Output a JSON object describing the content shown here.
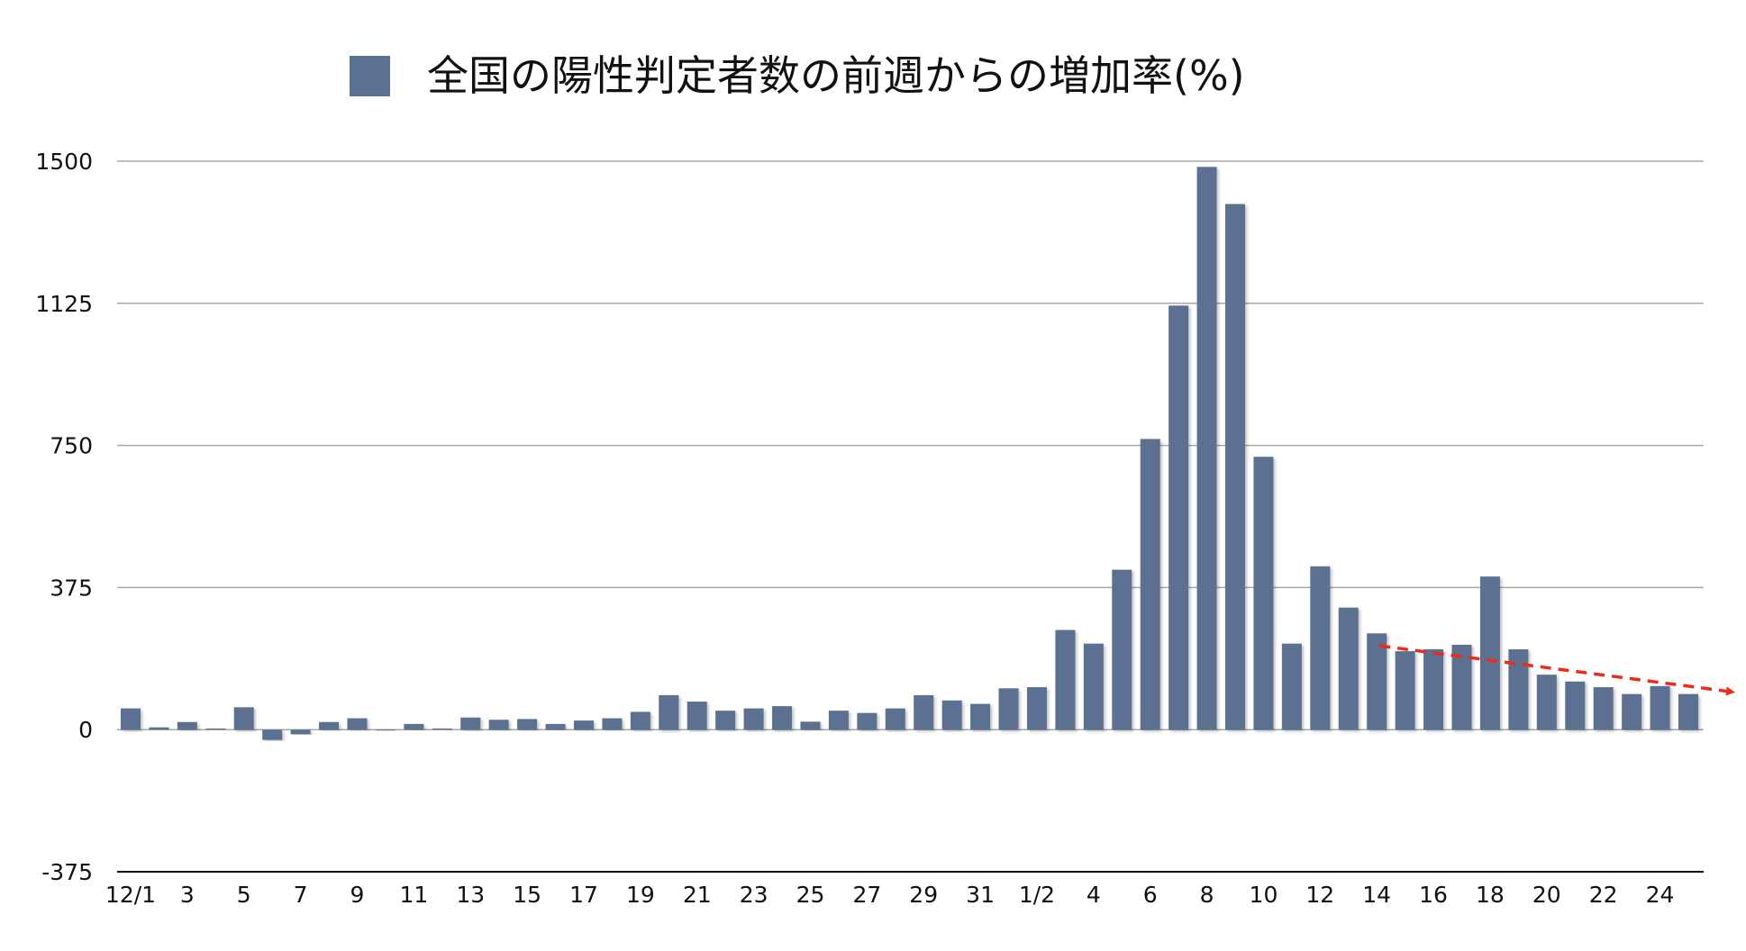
{
  "chart_data": {
    "type": "bar",
    "title": "全国の陽性判定者数の前週からの増加率(%)",
    "legend": [
      {
        "name": "全国の陽性判定者数の前週からの増加率(%)",
        "color": "#5b7191"
      }
    ],
    "legend_position": "top",
    "xlabel": "",
    "ylabel": "",
    "ylim": [
      -375,
      1500
    ],
    "yticks": [
      -375,
      0,
      375,
      750,
      1125,
      1500
    ],
    "ytick_labels": [
      "-375",
      "0",
      "375",
      "750",
      "1125",
      "1500"
    ],
    "grid": true,
    "categories": [
      "12/1",
      "12/2",
      "12/3",
      "12/4",
      "12/5",
      "12/6",
      "12/7",
      "12/8",
      "12/9",
      "12/10",
      "12/11",
      "12/12",
      "12/13",
      "12/14",
      "12/15",
      "12/16",
      "12/17",
      "12/18",
      "12/19",
      "12/20",
      "12/21",
      "12/22",
      "12/23",
      "12/24",
      "12/25",
      "12/26",
      "12/27",
      "12/28",
      "12/29",
      "12/30",
      "12/31",
      "1/1",
      "1/2",
      "1/3",
      "1/4",
      "1/5",
      "1/6",
      "1/7",
      "1/8",
      "1/9",
      "1/10",
      "1/11",
      "1/12",
      "1/13",
      "1/14",
      "1/15",
      "1/16",
      "1/17",
      "1/18",
      "1/19",
      "1/20",
      "1/21",
      "1/22",
      "1/23",
      "1/24",
      "1/25"
    ],
    "xtick_labels": [
      "12/1",
      "3",
      "5",
      "7",
      "9",
      "11",
      "13",
      "15",
      "17",
      "19",
      "21",
      "23",
      "25",
      "27",
      "29",
      "31",
      "1/2",
      "4",
      "6",
      "8",
      "10",
      "12",
      "14",
      "16",
      "18",
      "20",
      "22",
      "24"
    ],
    "values": [
      56,
      6,
      20,
      3,
      59,
      -27,
      -12,
      20,
      30,
      0,
      15,
      3,
      32,
      26,
      28,
      15,
      24,
      30,
      47,
      91,
      74,
      50,
      56,
      62,
      21,
      50,
      44,
      56,
      91,
      77,
      68,
      109,
      112,
      263,
      227,
      422,
      767,
      1119,
      1485,
      1387,
      720,
      227,
      431,
      322,
      254,
      207,
      212,
      224,
      404,
      212,
      145,
      127,
      112,
      94,
      115,
      94
    ],
    "annotations": [
      {
        "type": "trend-arrow",
        "from_category": "1/14",
        "from_value": 207,
        "to_value": 95,
        "color": "#ee2a1b",
        "style": "dashed"
      }
    ],
    "colors": {
      "bar": "#5b7191",
      "grid": "#a8a8a8",
      "axis": "#111111",
      "trend": "#ee2a1b"
    }
  }
}
